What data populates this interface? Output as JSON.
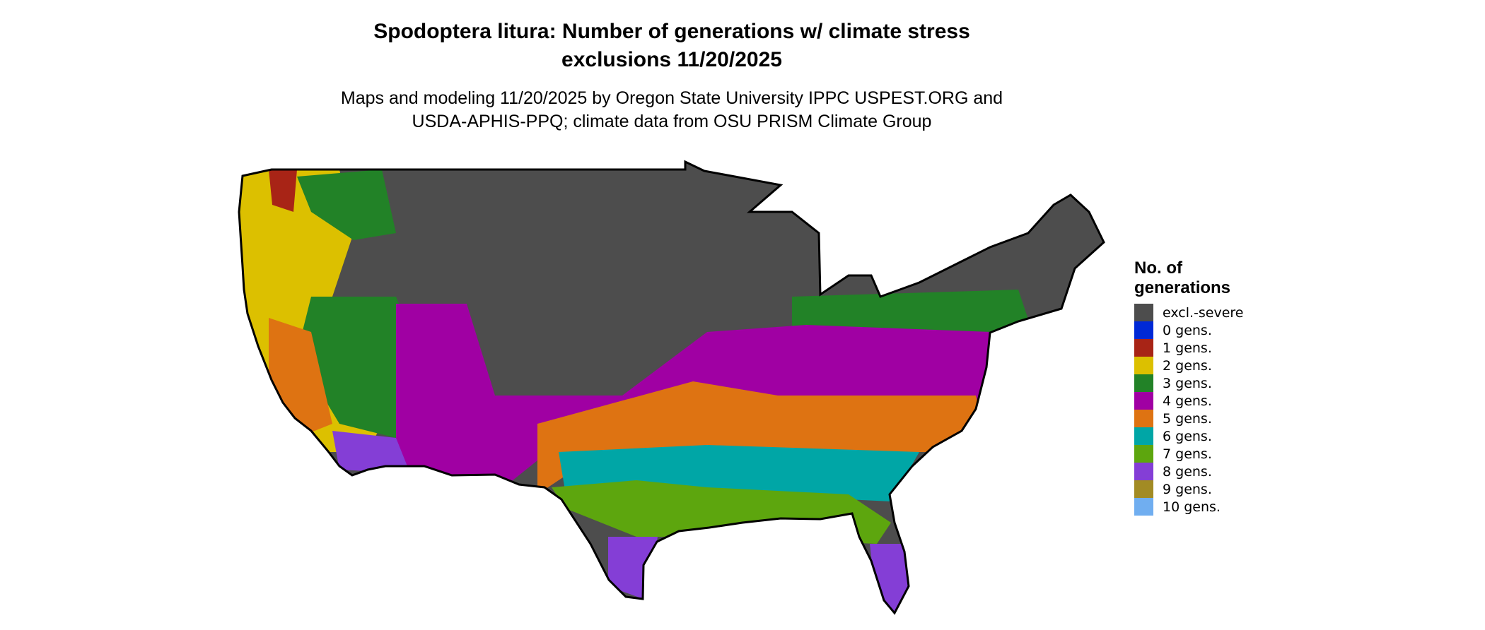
{
  "title_line1": "Spodoptera litura: Number of generations w/ climate stress",
  "title_line2": "exclusions 11/20/2025",
  "subtitle_line1": "Maps and modeling 11/20/2025 by Oregon State University IPPC USPEST.ORG and",
  "subtitle_line2": "USDA-APHIS-PPQ; climate data from OSU PRISM Climate Group",
  "legend": {
    "title_line1": "No. of",
    "title_line2": "generations",
    "items": [
      {
        "label": "excl.-severe",
        "color": "#4d4d4d"
      },
      {
        "label": "0 gens.",
        "color": "#0029d6"
      },
      {
        "label": "1 gens.",
        "color": "#a82416"
      },
      {
        "label": "2 gens.",
        "color": "#dcc000"
      },
      {
        "label": "3 gens.",
        "color": "#228227"
      },
      {
        "label": "4 gens.",
        "color": "#a000a3"
      },
      {
        "label": "5 gens.",
        "color": "#de7312"
      },
      {
        "label": "6 gens.",
        "color": "#00a6a6"
      },
      {
        "label": "7 gens.",
        "color": "#5da60e"
      },
      {
        "label": "8 gens.",
        "color": "#843ed6"
      },
      {
        "label": "9 gens.",
        "color": "#a28b24"
      },
      {
        "label": "10 gens.",
        "color": "#70aef0"
      }
    ]
  }
}
